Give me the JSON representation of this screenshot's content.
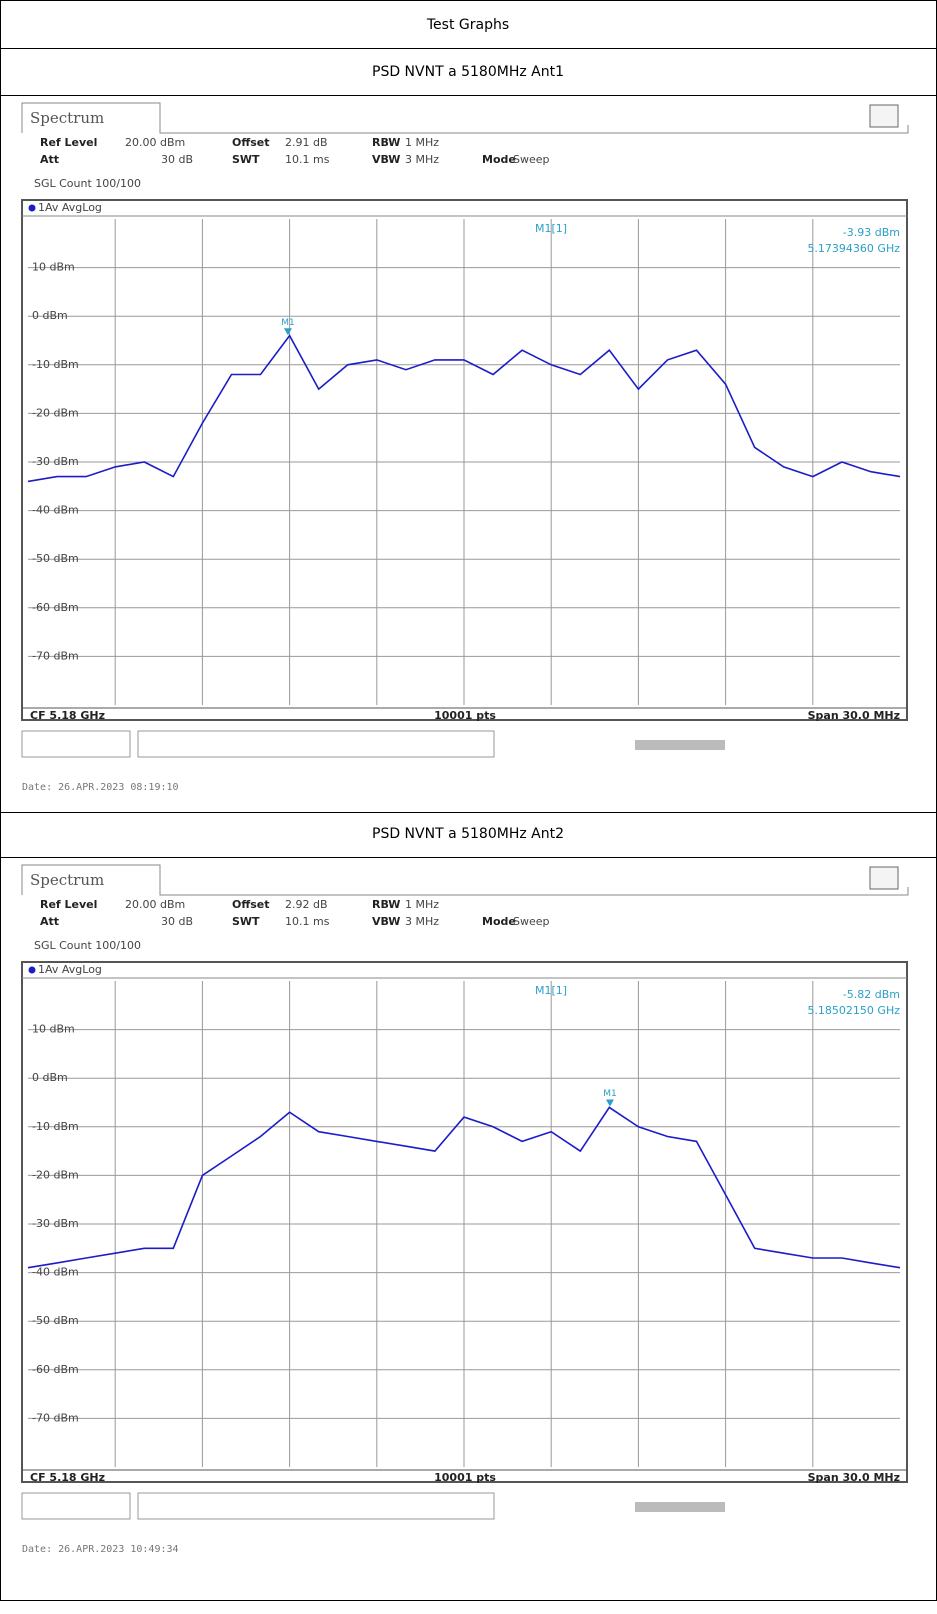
{
  "header": {
    "title": "Test Graphs"
  },
  "chart_data": [
    {
      "type": "line",
      "title": "PSD NVNT a 5180MHz Ant1",
      "panel": "Spectrum",
      "settings": [
        {
          "label": "Ref Level",
          "value": "20.00 dBm"
        },
        {
          "label": "Offset",
          "value": "2.91 dB"
        },
        {
          "label": "RBW",
          "value": "1 MHz"
        },
        {
          "label": "Att",
          "value": "30 dB"
        },
        {
          "label": "SWT",
          "value": "10.1 ms"
        },
        {
          "label": "VBW",
          "value": "3 MHz"
        },
        {
          "label": "Mode",
          "value": "Sweep"
        }
      ],
      "count": "SGL Count 100/100",
      "center": "CF 5.18 GHz",
      "points": "10001 pts",
      "span": "Span 30.0 MHz",
      "date": "Date: 26.APR.2023 08:19:10",
      "x": [
        5.165,
        5.166,
        5.167,
        5.168,
        5.169,
        5.17,
        5.171,
        5.172,
        5.173,
        5.174,
        5.175,
        5.176,
        5.177,
        5.178,
        5.179,
        5.18,
        5.181,
        5.182,
        5.183,
        5.184,
        5.185,
        5.186,
        5.187,
        5.188,
        5.189,
        5.19,
        5.191,
        5.192,
        5.193,
        5.194,
        5.195
      ],
      "series": [
        {
          "name": "1Av AvgLog",
          "color": "#1c1cc8",
          "values": [
            -34,
            -33,
            -33,
            -31,
            -30,
            -33,
            -22,
            -12,
            -12,
            -4,
            -15,
            -10,
            -9,
            -11,
            -9,
            -9,
            -12,
            -7,
            -10,
            -12,
            -7,
            -15,
            -9,
            -7,
            -14,
            -27,
            -31,
            -33,
            -30,
            -32,
            -33
          ]
        }
      ],
      "marker": {
        "name": "M1[1]",
        "label": "M1",
        "x": 5.1739436,
        "y": -3.93,
        "value_label": "-3.93 dBm",
        "x_label": "5.17394360 GHz"
      },
      "xlim": [
        5.165,
        5.195
      ],
      "ylim": [
        -80,
        20
      ],
      "yticks": [
        {
          "value": 10,
          "label": "10 dBm"
        },
        {
          "value": 0,
          "label": "0 dBm"
        },
        {
          "value": -10,
          "label": "-10 dBm"
        },
        {
          "value": -20,
          "label": "-20 dBm"
        },
        {
          "value": -30,
          "label": "-30 dBm"
        },
        {
          "value": -40,
          "label": "-40 dBm"
        },
        {
          "value": -50,
          "label": "-50 dBm"
        },
        {
          "value": -60,
          "label": "-60 dBm"
        },
        {
          "value": -70,
          "label": "-70 dBm"
        }
      ],
      "grid": true
    },
    {
      "type": "line",
      "title": "PSD NVNT a 5180MHz Ant2",
      "panel": "Spectrum",
      "settings": [
        {
          "label": "Ref Level",
          "value": "20.00 dBm"
        },
        {
          "label": "Offset",
          "value": "2.92 dB"
        },
        {
          "label": "RBW",
          "value": "1 MHz"
        },
        {
          "label": "Att",
          "value": "30 dB"
        },
        {
          "label": "SWT",
          "value": "10.1 ms"
        },
        {
          "label": "VBW",
          "value": "3 MHz"
        },
        {
          "label": "Mode",
          "value": "Sweep"
        }
      ],
      "count": "SGL Count 100/100",
      "center": "CF 5.18 GHz",
      "points": "10001 pts",
      "span": "Span 30.0 MHz",
      "date": "Date: 26.APR.2023 10:49:34",
      "x": [
        5.165,
        5.166,
        5.167,
        5.168,
        5.169,
        5.17,
        5.171,
        5.172,
        5.173,
        5.174,
        5.175,
        5.176,
        5.177,
        5.178,
        5.179,
        5.18,
        5.181,
        5.182,
        5.183,
        5.184,
        5.185,
        5.186,
        5.187,
        5.188,
        5.189,
        5.19,
        5.191,
        5.192,
        5.193,
        5.194,
        5.195
      ],
      "series": [
        {
          "name": "1Av AvgLog",
          "color": "#1c1cc8",
          "values": [
            -39,
            -38,
            -37,
            -36,
            -35,
            -35,
            -20,
            -16,
            -12,
            -7,
            -11,
            -12,
            -13,
            -14,
            -15,
            -8,
            -10,
            -13,
            -11,
            -15,
            -6,
            -10,
            -12,
            -13,
            -24,
            -35,
            -36,
            -37,
            -37,
            -38,
            -39
          ]
        }
      ],
      "marker": {
        "name": "M1[1]",
        "label": "M1",
        "x": 5.1850215,
        "y": -5.82,
        "value_label": "-5.82 dBm",
        "x_label": "5.18502150 GHz"
      },
      "xlim": [
        5.165,
        5.195
      ],
      "ylim": [
        -80,
        20
      ],
      "yticks": [
        {
          "value": 10,
          "label": "10 dBm"
        },
        {
          "value": 0,
          "label": "0 dBm"
        },
        {
          "value": -10,
          "label": "-10 dBm"
        },
        {
          "value": -20,
          "label": "-20 dBm"
        },
        {
          "value": -30,
          "label": "-30 dBm"
        },
        {
          "value": -40,
          "label": "-40 dBm"
        },
        {
          "value": -50,
          "label": "-50 dBm"
        },
        {
          "value": -60,
          "label": "-60 dBm"
        },
        {
          "value": -70,
          "label": "-70 dBm"
        }
      ],
      "grid": true
    }
  ]
}
